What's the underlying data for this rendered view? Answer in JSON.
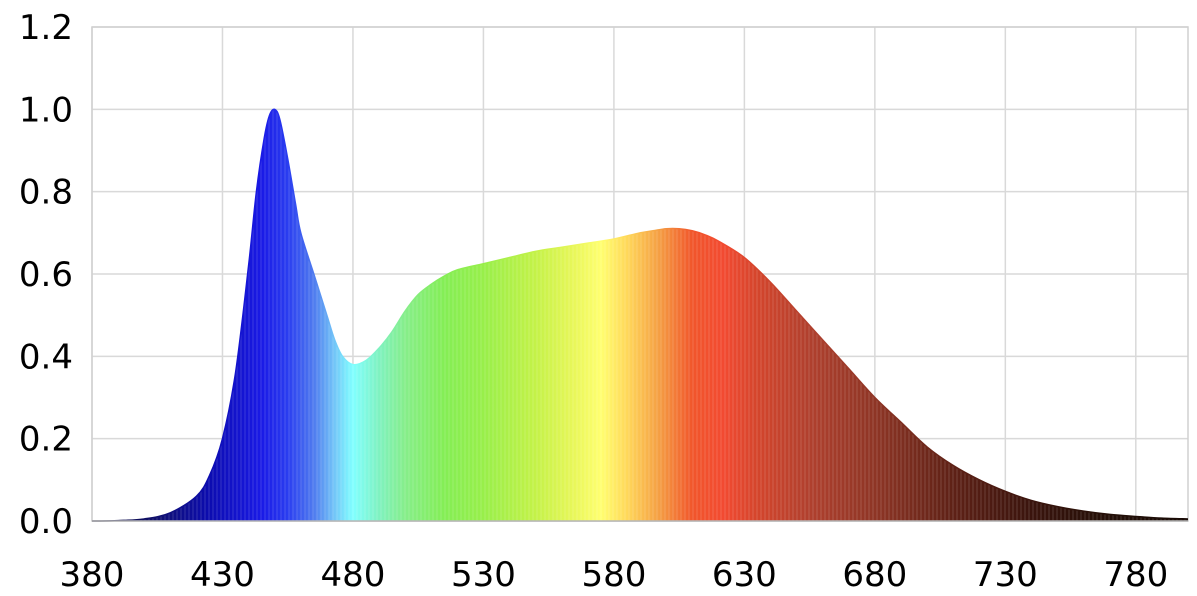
{
  "chart_data": {
    "type": "area",
    "title": "",
    "xlabel": "",
    "ylabel": "",
    "xlim": [
      380,
      800
    ],
    "ylim": [
      0,
      1.2
    ],
    "grid": true,
    "legend": "none",
    "x_ticks": [
      380,
      430,
      480,
      530,
      580,
      630,
      680,
      730,
      780
    ],
    "y_ticks": [
      "0.0",
      "0.2",
      "0.4",
      "0.6",
      "0.8",
      "1.0",
      "1.2"
    ],
    "fill": "visible-spectrum gradient by wavelength",
    "series": [
      {
        "x": [
          380,
          390,
          400,
          410,
          420,
          425,
          430,
          435,
          440,
          443,
          446,
          448,
          450,
          452,
          455,
          458,
          460,
          465,
          470,
          473,
          476,
          480,
          485,
          490,
          495,
          500,
          505,
          510,
          515,
          520,
          530,
          540,
          550,
          560,
          570,
          580,
          590,
          595,
          600,
          605,
          610,
          615,
          620,
          630,
          640,
          650,
          660,
          670,
          680,
          690,
          700,
          710,
          720,
          730,
          740,
          750,
          760,
          770,
          780,
          790,
          800
        ],
        "y": [
          0.0,
          0.001,
          0.005,
          0.02,
          0.06,
          0.11,
          0.2,
          0.36,
          0.62,
          0.8,
          0.93,
          0.985,
          1.0,
          0.975,
          0.88,
          0.77,
          0.7,
          0.6,
          0.5,
          0.44,
          0.4,
          0.38,
          0.39,
          0.42,
          0.46,
          0.51,
          0.55,
          0.575,
          0.595,
          0.61,
          0.625,
          0.64,
          0.655,
          0.665,
          0.675,
          0.685,
          0.7,
          0.705,
          0.71,
          0.71,
          0.705,
          0.695,
          0.68,
          0.64,
          0.58,
          0.51,
          0.44,
          0.37,
          0.3,
          0.24,
          0.18,
          0.135,
          0.1,
          0.072,
          0.05,
          0.035,
          0.024,
          0.016,
          0.011,
          0.007,
          0.005
        ]
      }
    ]
  }
}
